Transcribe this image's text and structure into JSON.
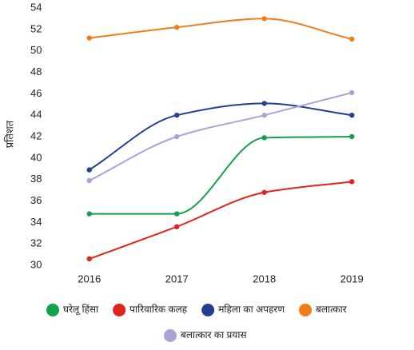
{
  "chart_data": {
    "type": "line",
    "y_label": "प्रतिशत",
    "categories": [
      "2016",
      "2017",
      "2018",
      "2019"
    ],
    "series": [
      {
        "name": "घरेलू हिंसा",
        "color": "#13a14b",
        "values": [
          34.8,
          34.8,
          41.9,
          42.0
        ]
      },
      {
        "name": "पारिवारिक कलह",
        "color": "#e2231a",
        "values": [
          30.6,
          33.6,
          36.8,
          37.8
        ]
      },
      {
        "name": "महिला का अपहरण",
        "color": "#23408f",
        "values": [
          38.9,
          44.0,
          45.1,
          44.0
        ]
      },
      {
        "name": "बलात्कार",
        "color": "#f07d1b",
        "values": [
          51.2,
          52.2,
          53.0,
          51.1
        ]
      },
      {
        "name": "बलात्कार का प्रयास",
        "color": "#aaa3d8",
        "values": [
          37.9,
          42.0,
          44.0,
          46.1
        ]
      }
    ],
    "ylim": [
      30,
      54
    ],
    "yticks": [
      30,
      32,
      34,
      36,
      38,
      40,
      42,
      44,
      46,
      48,
      50,
      52,
      54
    ],
    "grid": false
  }
}
